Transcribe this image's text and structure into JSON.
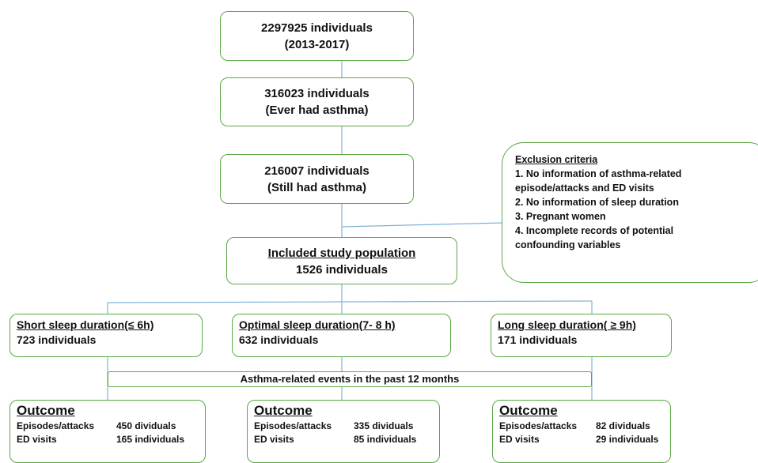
{
  "boxes": {
    "total": {
      "line1": "2297925 individuals",
      "line2": "(2013-2017)"
    },
    "ever": {
      "line1": "316023  individuals",
      "line2": "(Ever had asthma)"
    },
    "still": {
      "line1": "216007  individuals",
      "line2": "(Still had asthma)"
    },
    "included": {
      "title": "Included study population",
      "line2": "1526   individuals"
    }
  },
  "exclusion": {
    "title": "Exclusion criteria",
    "items": [
      "1. No information of asthma-related",
      "episode/attacks and ED visits",
      "2. No information of sleep duration",
      "3.  Pregnant women",
      "4. Incomplete records of  potential",
      "confounding variables"
    ]
  },
  "groups": [
    {
      "title": "Short sleep duration(≤ 6h)",
      "count": "723  individuals"
    },
    {
      "title": "Optimal sleep duration(7- 8 h)",
      "count": "632  individuals"
    },
    {
      "title": "Long sleep duration( ≥ 9h)",
      "count": "171  individuals"
    }
  ],
  "events": "Asthma-related events in the past 12 months",
  "outcomes": [
    {
      "title": "Outcome",
      "rows": [
        {
          "label": "Episodes/attacks",
          "value": "450 dividuals"
        },
        {
          "label": "ED visits",
          "value": "165 individuals"
        }
      ]
    },
    {
      "title": "Outcome",
      "rows": [
        {
          "label": "Episodes/attacks",
          "value": "335 dividuals"
        },
        {
          "label": "ED visits",
          "value": "85 individuals"
        }
      ]
    },
    {
      "title": "Outcome",
      "rows": [
        {
          "label": "Episodes/attacks",
          "value": "82 dividuals"
        },
        {
          "label": "ED visits",
          "value": "29 individuals"
        }
      ]
    }
  ]
}
